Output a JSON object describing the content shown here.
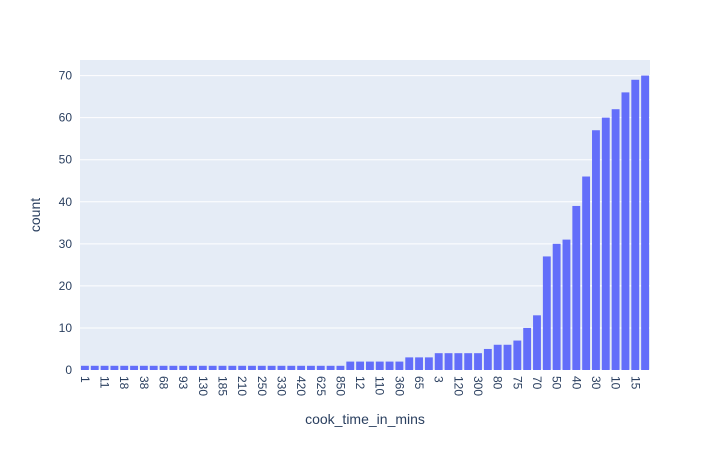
{
  "chart_data": {
    "type": "bar",
    "x_label": "cook_time_in_mins",
    "y_label": "count",
    "categories": [
      "1",
      null,
      "11",
      null,
      "18",
      null,
      "38",
      null,
      "68",
      null,
      "93",
      null,
      "130",
      null,
      "185",
      null,
      "210",
      null,
      "250",
      null,
      "330",
      null,
      "420",
      null,
      "625",
      null,
      "850",
      null,
      "12",
      null,
      "110",
      null,
      "360",
      null,
      "65",
      null,
      "3",
      null,
      "120",
      null,
      "300",
      null,
      "80",
      null,
      "75",
      null,
      "70",
      null,
      "50",
      null,
      "40",
      null,
      "30",
      null,
      "10",
      null,
      "15",
      null
    ],
    "values": [
      1,
      1,
      1,
      1,
      1,
      1,
      1,
      1,
      1,
      1,
      1,
      1,
      1,
      1,
      1,
      1,
      1,
      1,
      1,
      1,
      1,
      1,
      1,
      1,
      1,
      1,
      1,
      2,
      2,
      2,
      2,
      2,
      2,
      3,
      3,
      3,
      4,
      4,
      4,
      4,
      4,
      5,
      6,
      6,
      7,
      10,
      13,
      27,
      30,
      31,
      39,
      46,
      57,
      60,
      62,
      66,
      69,
      70
    ],
    "color": "#636efa",
    "ylim": [
      0,
      73.7
    ],
    "yticks": [
      0,
      10,
      20,
      30,
      40,
      50,
      60,
      70
    ],
    "grid": true
  }
}
